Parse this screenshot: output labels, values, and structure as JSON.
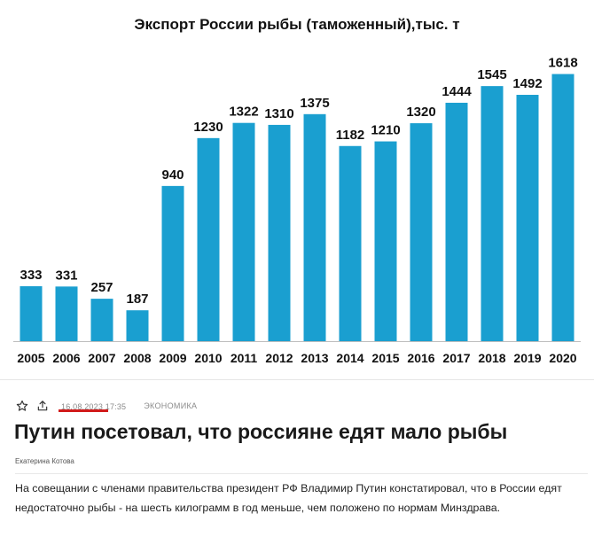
{
  "chart_data": {
    "type": "bar",
    "title": "Экспорт России рыбы (таможенный),тыс. т",
    "categories": [
      "2005",
      "2006",
      "2007",
      "2008",
      "2009",
      "2010",
      "2011",
      "2012",
      "2013",
      "2014",
      "2015",
      "2016",
      "2017",
      "2018",
      "2019",
      "2020"
    ],
    "values": [
      333,
      331,
      257,
      187,
      940,
      1230,
      1322,
      1310,
      1375,
      1182,
      1210,
      1320,
      1444,
      1545,
      1492,
      1618
    ],
    "ylim": [
      0,
      1700
    ],
    "grid": false,
    "bar_color": "#1a9fd0"
  },
  "article": {
    "date": "16.08.2023 17:35",
    "category": "ЭКОНОМИКА",
    "title": "Путин посетовал, что россияне едят мало рыбы",
    "author": "Екатерина Котова",
    "body": "На совещании с членами правительства президент РФ Владимир Путин констатировал, что в России едят недостаточно рыбы - на шесть килограмм в год меньше, чем положено по нормам Минздрава.",
    "accent_color": "#d11b1b"
  },
  "icons": {
    "favorite": "star-outline-icon",
    "share": "share-upload-icon"
  }
}
